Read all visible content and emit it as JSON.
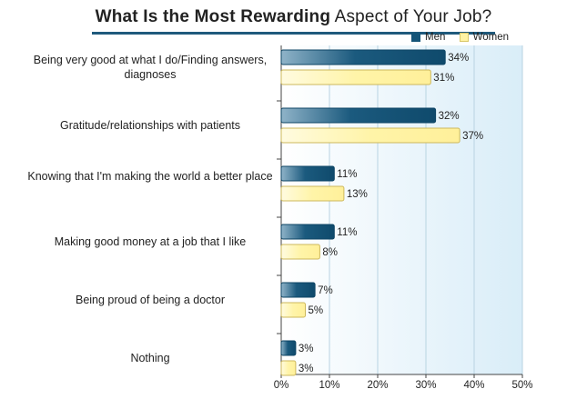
{
  "chart_data": {
    "type": "bar",
    "orientation": "horizontal",
    "title_bold": "What Is the Most Rewarding",
    "title_rest": "Aspect of Your Job?",
    "legend": {
      "position": "top-right"
    },
    "categories": [
      "Being very good at what I do/Finding answers, diagnoses",
      "Gratitude/relationships with patients",
      "Knowing that I'm making the world a better place",
      "Making good money at a job that I like",
      "Being proud of being a doctor",
      "Nothing"
    ],
    "series": [
      {
        "name": "Men",
        "values": [
          34,
          32,
          11,
          11,
          7,
          3
        ],
        "color": "#145478"
      },
      {
        "name": "Women",
        "values": [
          31,
          37,
          13,
          8,
          5,
          3
        ],
        "color": "#fff3a4"
      }
    ],
    "xlim": [
      0,
      50
    ],
    "xticks": [
      "0%",
      "10%",
      "20%",
      "30%",
      "40%",
      "50%"
    ],
    "value_suffix": "%",
    "grid": true
  }
}
